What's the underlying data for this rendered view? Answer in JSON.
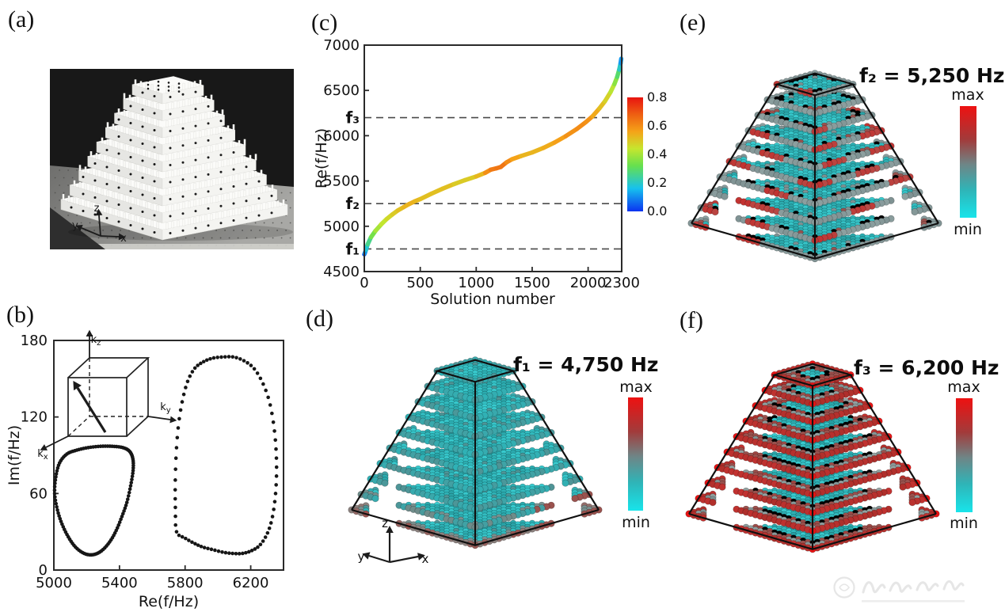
{
  "panels": {
    "a": {
      "label": "(a)"
    },
    "b": {
      "label": "(b)"
    },
    "c": {
      "label": "(c)"
    },
    "d": {
      "label": "(d)"
    },
    "e": {
      "label": "(e)"
    },
    "f": {
      "label": "(f)"
    }
  },
  "panel_a": {
    "alt": "Photograph of a white 3D-printed stepped pyramid lattice standing on a gray optical table with a black backdrop",
    "layers": 9,
    "axis_triad": {
      "up": "z",
      "left": "y",
      "right": "x"
    }
  },
  "chart_data": [
    {
      "id": "b",
      "type": "scatter",
      "xlabel": "Re(f/Hz)",
      "ylabel": "Im(f/Hz)",
      "xlim": [
        5000,
        6400
      ],
      "ylim": [
        0,
        180
      ],
      "xticks": [
        5000,
        5400,
        5800,
        6200
      ],
      "yticks": [
        0,
        60,
        120,
        180
      ],
      "grid": false,
      "marker": "filled-black-dot",
      "inset": {
        "description": "cubic Brillouin zone with bold wavevector arrow",
        "axes": [
          {
            "base": "k",
            "sub": "z"
          },
          {
            "base": "k",
            "sub": "y"
          },
          {
            "base": "k",
            "sub": "x"
          }
        ]
      },
      "series": [
        {
          "name": "complex-band-loop-1",
          "loop": true,
          "points": [
            [
              5005,
              60
            ],
            [
              5012,
              73
            ],
            [
              5035,
              84
            ],
            [
              5080,
              91
            ],
            [
              5140,
              94
            ],
            [
              5210,
              96
            ],
            [
              5285,
              97
            ],
            [
              5355,
              97
            ],
            [
              5420,
              96
            ],
            [
              5462,
              93
            ],
            [
              5482,
              87
            ],
            [
              5483,
              78
            ],
            [
              5468,
              66
            ],
            [
              5445,
              53
            ],
            [
              5415,
              42
            ],
            [
              5380,
              31
            ],
            [
              5340,
              22
            ],
            [
              5290,
              15
            ],
            [
              5238,
              12
            ],
            [
              5185,
              13
            ],
            [
              5132,
              18
            ],
            [
              5088,
              26
            ],
            [
              5050,
              36
            ],
            [
              5022,
              47
            ]
          ]
        },
        {
          "name": "complex-band-loop-2",
          "loop": true,
          "points": [
            [
              5748,
              30
            ],
            [
              5741,
              48
            ],
            [
              5740,
              68
            ],
            [
              5746,
              92
            ],
            [
              5760,
              114
            ],
            [
              5784,
              133
            ],
            [
              5816,
              148
            ],
            [
              5858,
              158
            ],
            [
              5908,
              163
            ],
            [
              5965,
              166
            ],
            [
              6030,
              167
            ],
            [
              6095,
              167
            ],
            [
              6160,
              164
            ],
            [
              6220,
              158
            ],
            [
              6272,
              147
            ],
            [
              6314,
              132
            ],
            [
              6341,
              113
            ],
            [
              6355,
              93
            ],
            [
              6357,
              73
            ],
            [
              6347,
              54
            ],
            [
              6326,
              38
            ],
            [
              6295,
              27
            ],
            [
              6252,
              19
            ],
            [
              6202,
              15
            ],
            [
              6148,
              13
            ],
            [
              6090,
              13
            ],
            [
              6030,
              14
            ],
            [
              5968,
              16
            ],
            [
              5908,
              18
            ],
            [
              5855,
              21
            ],
            [
              5800,
              25
            ]
          ]
        }
      ]
    },
    {
      "id": "c",
      "type": "line",
      "xlabel": "Solution number",
      "ylabel": "Re(f/Hz)",
      "xlim": [
        0,
        2300
      ],
      "ylim": [
        4500,
        7000
      ],
      "xticks": [
        0,
        500,
        1000,
        1500,
        2000,
        2300
      ],
      "yticks": [
        4500,
        5000,
        5500,
        6000,
        6500,
        7000
      ],
      "colorbar": {
        "ticks": [
          "0.8",
          "0.6",
          "0.4",
          "0.2",
          "0.0"
        ],
        "range": [
          0,
          0.8
        ],
        "colormap": "jet"
      },
      "dashed_lines": [
        {
          "label": "f₁",
          "value": 4750
        },
        {
          "label": "f₂",
          "value": 5250
        },
        {
          "label": "f₃",
          "value": 6200
        }
      ],
      "series": [
        {
          "name": "sorted eigenfrequencies (color = modal weight)",
          "points": [
            [
              0,
              4690,
              0.02
            ],
            [
              5,
              4705,
              0.08
            ],
            [
              15,
              4740,
              0.15
            ],
            [
              30,
              4800,
              0.22
            ],
            [
              60,
              4880,
              0.3
            ],
            [
              100,
              4950,
              0.38
            ],
            [
              150,
              5020,
              0.42
            ],
            [
              200,
              5080,
              0.45
            ],
            [
              250,
              5130,
              0.48
            ],
            [
              300,
              5175,
              0.5
            ],
            [
              350,
              5210,
              0.52
            ],
            [
              400,
              5245,
              0.54
            ],
            [
              450,
              5275,
              0.53
            ],
            [
              500,
              5300,
              0.52
            ],
            [
              600,
              5360,
              0.5
            ],
            [
              700,
              5415,
              0.52
            ],
            [
              800,
              5465,
              0.5
            ],
            [
              900,
              5510,
              0.48
            ],
            [
              1000,
              5550,
              0.5
            ],
            [
              1080,
              5590,
              0.55
            ],
            [
              1130,
              5625,
              0.64
            ],
            [
              1180,
              5640,
              0.62
            ],
            [
              1220,
              5655,
              0.66
            ],
            [
              1270,
              5705,
              0.62
            ],
            [
              1320,
              5740,
              0.58
            ],
            [
              1400,
              5775,
              0.54
            ],
            [
              1500,
              5815,
              0.52
            ],
            [
              1600,
              5865,
              0.54
            ],
            [
              1700,
              5925,
              0.55
            ],
            [
              1800,
              5995,
              0.58
            ],
            [
              1900,
              6075,
              0.6
            ],
            [
              1980,
              6150,
              0.6
            ],
            [
              2040,
              6215,
              0.58
            ],
            [
              2100,
              6300,
              0.52
            ],
            [
              2150,
              6380,
              0.5
            ],
            [
              2200,
              6480,
              0.45
            ],
            [
              2235,
              6570,
              0.4
            ],
            [
              2260,
              6650,
              0.33
            ],
            [
              2278,
              6730,
              0.25
            ],
            [
              2290,
              6800,
              0.15
            ],
            [
              2296,
              6850,
              0.08
            ]
          ]
        }
      ]
    }
  ],
  "mode_shapes": {
    "d": {
      "freq_label": "f₁ = 4,750 Hz",
      "colorbar": {
        "max": "max",
        "min": "min"
      },
      "pattern": "mostly-min",
      "axis_triad": {
        "up": "z",
        "left": "y",
        "right": "x"
      }
    },
    "e": {
      "freq_label": "f₂ = 5,250 Hz",
      "colorbar": {
        "max": "max",
        "min": "min"
      },
      "pattern": "scattered-edge"
    },
    "f": {
      "freq_label": "f₃ = 6,200 Hz",
      "colorbar": {
        "max": "max",
        "min": "min"
      },
      "pattern": "edge-localized"
    }
  },
  "colors": {
    "figure_bg": "#ffffff",
    "frame": "#2a2a2a",
    "dashed": "#4a4a4a",
    "scatter_dot": "#161616",
    "jet_stops": [
      [
        0,
        "#0b33f0"
      ],
      [
        0.2,
        "#16c1ee"
      ],
      [
        0.4,
        "#66e04e"
      ],
      [
        0.55,
        "#c6e62e"
      ],
      [
        0.7,
        "#f5a318"
      ],
      [
        0.85,
        "#ee5f12"
      ],
      [
        1,
        "#e81410"
      ]
    ],
    "mode_colorbar": [
      "#ee1111",
      "#a23b3b",
      "#6f8586",
      "#2fb4b7",
      "#18e4ea"
    ],
    "sphere": {
      "teal_dark": "#27a0a4",
      "teal": "#2fb2b6",
      "teal_bright": "#38ccd0",
      "dull": "#4f9496",
      "gray": "#7f9293",
      "red": "#c23230",
      "red_bright": "#e81414",
      "maroon": "#9a524e"
    }
  },
  "watermark": {
    "present": true,
    "note": "faint circular seal with illegible script text, bottom-right corner"
  }
}
